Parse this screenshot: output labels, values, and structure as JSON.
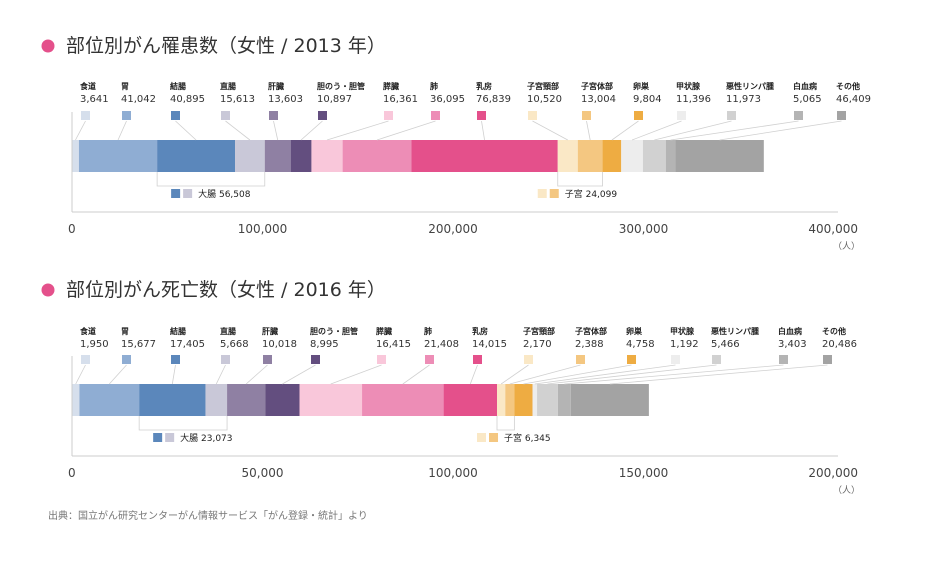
{
  "colors": [
    "#d6dfec",
    "#8fadd3",
    "#5b87bb",
    "#c9c8d8",
    "#8f80a3",
    "#634e7f",
    "#f9c7da",
    "#ed8db6",
    "#e4508b",
    "#fae8c6",
    "#f4c781",
    "#eeac42",
    "#ededed",
    "#d1d1d1",
    "#b4b4b4",
    "#a3a3a3"
  ],
  "bullet_color": "#e4508b",
  "source": "出典：国立がん研究センターがん情報サービス「がん登録・統計」より",
  "chart_data": [
    {
      "type": "bar",
      "stacked": true,
      "orientation": "horizontal",
      "title": "部位別がん罹患数（女性 / 2013 年）",
      "unit": "（人）",
      "xlim": [
        0,
        400000
      ],
      "ticks": [
        "0",
        "100,000",
        "200,000",
        "300,000",
        "400,000"
      ],
      "categories": [
        "食道",
        "胃",
        "結腸",
        "直腸",
        "肝臓",
        "胆のう・胆管",
        "膵臓",
        "肺",
        "乳房",
        "子宮頸部",
        "子宮体部",
        "卵巣",
        "甲状腺",
        "悪性リンパ腫",
        "白血病",
        "その他"
      ],
      "values": [
        3641,
        41042,
        40895,
        15613,
        13603,
        10897,
        16361,
        36095,
        76839,
        10520,
        13004,
        9804,
        11396,
        11973,
        5065,
        46409
      ],
      "value_labels": [
        "3,641",
        "41,042",
        "40,895",
        "15,613",
        "13,603",
        "10,897",
        "16,361",
        "36,095",
        "76,839",
        "10,520",
        "13,004",
        "9,804",
        "11,396",
        "11,973",
        "5,065",
        "46,409"
      ],
      "groups": [
        {
          "name": "大腸",
          "value": "56,508",
          "members": [
            2,
            3
          ]
        },
        {
          "name": "子宮",
          "value": "24,099",
          "members": [
            9,
            10
          ]
        }
      ]
    },
    {
      "type": "bar",
      "stacked": true,
      "orientation": "horizontal",
      "title": "部位別がん死亡数（女性 / 2016 年）",
      "unit": "（人）",
      "xlim": [
        0,
        200000
      ],
      "ticks": [
        "0",
        "50,000",
        "100,000",
        "150,000",
        "200,000"
      ],
      "categories": [
        "食道",
        "胃",
        "結腸",
        "直腸",
        "肝臓",
        "胆のう・胆管",
        "膵臓",
        "肺",
        "乳房",
        "子宮頸部",
        "子宮体部",
        "卵巣",
        "甲状腺",
        "悪性リンパ腫",
        "白血病",
        "その他"
      ],
      "values": [
        1950,
        15677,
        17405,
        5668,
        10018,
        8995,
        16415,
        21408,
        14015,
        2170,
        2388,
        4758,
        1192,
        5466,
        3403,
        20486
      ],
      "value_labels": [
        "1,950",
        "15,677",
        "17,405",
        "5,668",
        "10,018",
        "8,995",
        "16,415",
        "21,408",
        "14,015",
        "2,170",
        "2,388",
        "4,758",
        "1,192",
        "5,466",
        "3,403",
        "20,486"
      ],
      "groups": [
        {
          "name": "大腸",
          "value": "23,073",
          "members": [
            2,
            3
          ]
        },
        {
          "name": "子宮",
          "value": "6,345",
          "members": [
            9,
            10
          ]
        }
      ]
    }
  ]
}
